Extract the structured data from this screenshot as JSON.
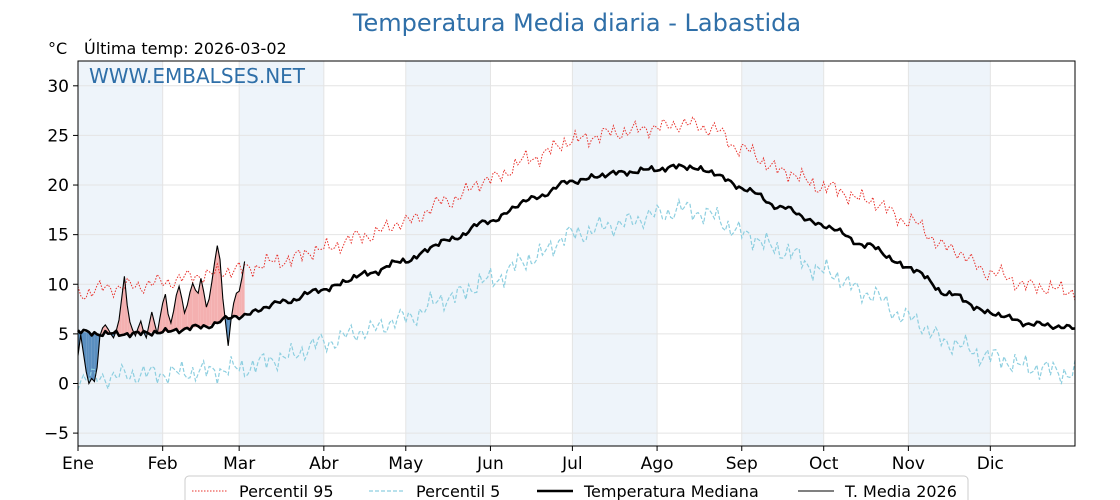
{
  "chart_data": {
    "type": "line",
    "title": "Temperatura Media diaria - Labastida",
    "unit_label": "°C",
    "last_temp_label": "Última temp: 2026-03-02",
    "watermark": "WWW.EMBALSES.NET",
    "ylim": [
      -6.3,
      32.5
    ],
    "yticks": [
      -5,
      0,
      5,
      10,
      15,
      20,
      25,
      30
    ],
    "ytick_labels": [
      "−5",
      "0",
      "5",
      "10",
      "15",
      "20",
      "25",
      "30"
    ],
    "xlim": [
      0,
      365
    ],
    "month_starts": [
      0,
      31,
      59,
      90,
      120,
      151,
      181,
      212,
      243,
      273,
      304,
      334
    ],
    "month_labels": [
      "Ene",
      "Feb",
      "Mar",
      "Abr",
      "May",
      "Jun",
      "Jul",
      "Ago",
      "Sep",
      "Oct",
      "Nov",
      "Dic"
    ],
    "grid": true,
    "legend_position": "bottom",
    "colors": {
      "p95": "#e8302a",
      "p5": "#8ecfe0",
      "median": "#000000",
      "actual": "#000000",
      "warm_fill": "#f4b0b0",
      "cold_fill": "#5a8fc0",
      "band": "#eef4fa",
      "title": "#2f6fa8"
    },
    "series": [
      {
        "name": "Percentil 95",
        "style": "dotted-red",
        "points": [
          [
            0,
            9.0
          ],
          [
            10,
            9.6
          ],
          [
            20,
            9.8
          ],
          [
            31,
            10.2
          ],
          [
            45,
            10.9
          ],
          [
            59,
            11.5
          ],
          [
            75,
            12.4
          ],
          [
            90,
            13.6
          ],
          [
            105,
            14.9
          ],
          [
            120,
            16.3
          ],
          [
            135,
            18.4
          ],
          [
            151,
            20.6
          ],
          [
            166,
            22.7
          ],
          [
            181,
            24.5
          ],
          [
            197,
            25.3
          ],
          [
            212,
            25.8
          ],
          [
            222,
            26.2
          ],
          [
            232,
            25.7
          ],
          [
            243,
            23.6
          ],
          [
            258,
            21.4
          ],
          [
            273,
            19.8
          ],
          [
            289,
            18.5
          ],
          [
            304,
            16.4
          ],
          [
            319,
            13.6
          ],
          [
            334,
            11.2
          ],
          [
            349,
            9.8
          ],
          [
            365,
            9.3
          ]
        ]
      },
      {
        "name": "Percentil 5",
        "style": "dashed-lightblue",
        "points": [
          [
            0,
            0.5
          ],
          [
            10,
            0.6
          ],
          [
            20,
            0.9
          ],
          [
            31,
            1.0
          ],
          [
            45,
            1.2
          ],
          [
            59,
            1.5
          ],
          [
            75,
            2.6
          ],
          [
            90,
            4.1
          ],
          [
            105,
            5.3
          ],
          [
            120,
            6.6
          ],
          [
            135,
            8.6
          ],
          [
            151,
            10.4
          ],
          [
            166,
            12.6
          ],
          [
            181,
            15.0
          ],
          [
            197,
            16.0
          ],
          [
            212,
            17.0
          ],
          [
            222,
            17.6
          ],
          [
            232,
            16.9
          ],
          [
            243,
            15.1
          ],
          [
            258,
            13.4
          ],
          [
            273,
            11.3
          ],
          [
            289,
            9.1
          ],
          [
            304,
            6.6
          ],
          [
            319,
            4.1
          ],
          [
            334,
            2.7
          ],
          [
            349,
            1.6
          ],
          [
            365,
            1.0
          ]
        ]
      },
      {
        "name": "Temperatura Mediana",
        "style": "thick-black",
        "points": [
          [
            0,
            5.2
          ],
          [
            10,
            5.0
          ],
          [
            20,
            5.0
          ],
          [
            31,
            5.2
          ],
          [
            45,
            5.7
          ],
          [
            59,
            6.8
          ],
          [
            75,
            8.2
          ],
          [
            90,
            9.5
          ],
          [
            105,
            11.0
          ],
          [
            120,
            12.4
          ],
          [
            135,
            14.4
          ],
          [
            151,
            16.4
          ],
          [
            166,
            18.6
          ],
          [
            181,
            20.4
          ],
          [
            197,
            21.2
          ],
          [
            212,
            21.6
          ],
          [
            222,
            21.9
          ],
          [
            232,
            21.3
          ],
          [
            243,
            19.7
          ],
          [
            258,
            17.7
          ],
          [
            273,
            15.9
          ],
          [
            289,
            13.9
          ],
          [
            304,
            11.7
          ],
          [
            319,
            9.0
          ],
          [
            334,
            7.1
          ],
          [
            349,
            6.0
          ],
          [
            365,
            5.6
          ]
        ]
      },
      {
        "name": "T. Media 2026",
        "style": "thin-black",
        "points": [
          [
            0,
            2.8
          ],
          [
            1,
            4.9
          ],
          [
            2,
            3.0
          ],
          [
            3,
            1.2
          ],
          [
            4,
            0.0
          ],
          [
            5,
            0.5
          ],
          [
            6,
            0.2
          ],
          [
            7,
            1.6
          ],
          [
            8,
            4.8
          ],
          [
            9,
            5.6
          ],
          [
            10,
            5.9
          ],
          [
            11,
            5.5
          ],
          [
            12,
            5.0
          ],
          [
            13,
            4.6
          ],
          [
            14,
            5.3
          ],
          [
            15,
            6.4
          ],
          [
            16,
            8.6
          ],
          [
            17,
            10.8
          ],
          [
            18,
            7.9
          ],
          [
            19,
            6.2
          ],
          [
            20,
            5.4
          ],
          [
            21,
            4.8
          ],
          [
            22,
            5.6
          ],
          [
            23,
            6.3
          ],
          [
            24,
            5.2
          ],
          [
            25,
            4.6
          ],
          [
            26,
            5.9
          ],
          [
            27,
            7.2
          ],
          [
            28,
            6.1
          ],
          [
            29,
            5.0
          ],
          [
            30,
            6.6
          ],
          [
            31,
            8.1
          ],
          [
            32,
            9.0
          ],
          [
            33,
            7.0
          ],
          [
            34,
            6.1
          ],
          [
            35,
            7.3
          ],
          [
            36,
            8.9
          ],
          [
            37,
            9.8
          ],
          [
            38,
            8.6
          ],
          [
            39,
            7.1
          ],
          [
            40,
            7.9
          ],
          [
            41,
            9.2
          ],
          [
            42,
            10.1
          ],
          [
            43,
            9.4
          ],
          [
            44,
            9.1
          ],
          [
            45,
            10.6
          ],
          [
            46,
            9.3
          ],
          [
            47,
            7.7
          ],
          [
            48,
            8.5
          ],
          [
            49,
            10.2
          ],
          [
            50,
            12.2
          ],
          [
            51,
            13.9
          ],
          [
            52,
            12.5
          ],
          [
            53,
            8.6
          ],
          [
            54,
            6.2
          ],
          [
            55,
            3.8
          ],
          [
            56,
            6.4
          ],
          [
            57,
            8.1
          ],
          [
            58,
            9.1
          ],
          [
            59,
            9.3
          ],
          [
            60,
            10.6
          ],
          [
            61,
            12.3
          ]
        ]
      }
    ]
  },
  "legend": {
    "items": [
      {
        "label": "Percentil 95"
      },
      {
        "label": "Percentil 5"
      },
      {
        "label": "Temperatura Mediana"
      },
      {
        "label": "T. Media 2026"
      }
    ]
  }
}
